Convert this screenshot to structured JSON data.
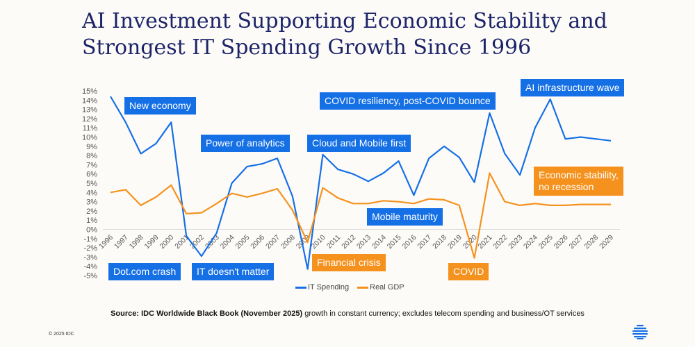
{
  "title_lines": [
    "AI Investment Supporting Economic Stability and",
    "Strongest IT Spending Growth Since 1996"
  ],
  "chart_data": {
    "type": "line",
    "title": "AI Investment Supporting Economic Stability and Strongest IT Spending Growth Since 1996",
    "xlabel": "",
    "ylabel": "",
    "ylim": [
      -5,
      15
    ],
    "y_ticks": [
      "15%",
      "14%",
      "13%",
      "12%",
      "11%",
      "10%",
      "9%",
      "8%",
      "7%",
      "6%",
      "5%",
      "4%",
      "3%",
      "2%",
      "1%",
      "0%",
      "-1%",
      "-2%",
      "-3%",
      "-4%",
      "-5%"
    ],
    "x": [
      1996,
      1997,
      1998,
      1999,
      2000,
      2001,
      2002,
      2003,
      2004,
      2005,
      2006,
      2007,
      2008,
      2009,
      2010,
      2011,
      2012,
      2013,
      2014,
      2015,
      2016,
      2017,
      2018,
      2019,
      2020,
      2021,
      2022,
      2023,
      2024,
      2025,
      2026,
      2027,
      2028,
      2029
    ],
    "grid": "zero line only",
    "legend": "bottom",
    "series": [
      {
        "name": "IT Spending",
        "color": "#1570e6",
        "values": [
          14.4,
          11.6,
          8.2,
          9.3,
          11.6,
          -0.7,
          -2.9,
          -0.4,
          5.0,
          6.8,
          7.1,
          7.7,
          3.6,
          -4.3,
          8.1,
          6.5,
          6.0,
          5.2,
          6.1,
          7.4,
          3.7,
          7.7,
          9.0,
          7.8,
          5.1,
          12.6,
          8.2,
          5.9,
          11.0,
          14.1,
          9.8,
          10.0,
          9.8,
          9.6
        ]
      },
      {
        "name": "Real GDP",
        "color": "#f5921e",
        "values": [
          4.0,
          4.3,
          2.6,
          3.5,
          4.8,
          1.7,
          1.8,
          2.8,
          3.9,
          3.5,
          3.9,
          4.4,
          2.1,
          -1.4,
          4.5,
          3.4,
          2.8,
          2.8,
          3.1,
          3.0,
          2.8,
          3.3,
          3.2,
          2.6,
          -3.1,
          6.1,
          3.0,
          2.6,
          2.8,
          2.6,
          2.6,
          2.7,
          2.7,
          2.7
        ]
      }
    ],
    "annotations": [
      {
        "text": "New economy",
        "color": "blue"
      },
      {
        "text": "Power of analytics",
        "color": "blue"
      },
      {
        "text": "Cloud and Mobile first",
        "color": "blue"
      },
      {
        "text": "COVID resiliency, post-COVID bounce",
        "color": "blue"
      },
      {
        "text": "AI infrastructure wave",
        "color": "blue"
      },
      {
        "text": "Economic stability,\nno recession",
        "color": "orange"
      },
      {
        "text": "Mobile maturity",
        "color": "blue"
      },
      {
        "text": "Dot.com crash",
        "color": "blue"
      },
      {
        "text": "IT doesn't matter",
        "color": "blue"
      },
      {
        "text": "Financial crisis",
        "color": "orange"
      },
      {
        "text": "COVID",
        "color": "orange"
      }
    ]
  },
  "source": {
    "bold": "Source: IDC Worldwide Black Book (November 2025)",
    "rest": " growth in constant currency; excludes telecom spending and business/OT services"
  },
  "copyright": "© 2025 IDC",
  "logo": {
    "name": "idc-globe-logo",
    "color": "#1570e6"
  }
}
